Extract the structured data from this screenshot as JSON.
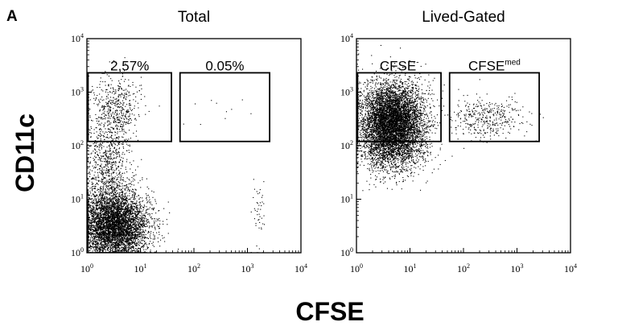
{
  "panel_label": "A",
  "y_axis_label": "CD11c",
  "x_axis_label": "CFSE",
  "chart_data": [
    {
      "type": "scatter",
      "title": "Total",
      "xscale": "log",
      "yscale": "log",
      "xlim": [
        1,
        10000
      ],
      "ylim": [
        1,
        10000
      ],
      "x_ticks": [
        "10",
        "10",
        "10",
        "10",
        "10"
      ],
      "x_tick_exponents": [
        "0",
        "1",
        "2",
        "3",
        "4"
      ],
      "y_ticks": [
        "10",
        "10",
        "10",
        "10",
        "10"
      ],
      "y_tick_exponents": [
        "0",
        "1",
        "2",
        "3",
        "4"
      ],
      "gates": [
        {
          "label": "2.57%",
          "x_range": [
            1.05,
            38
          ],
          "y_range": [
            120,
            2300
          ]
        },
        {
          "label": "0.05%",
          "x_range": [
            55,
            2600
          ],
          "y_range": [
            120,
            2300
          ]
        }
      ],
      "populations": [
        {
          "x_center": 3.2,
          "y_center": 3.2,
          "spread_x": 0.32,
          "spread_y": 0.32,
          "count": 5200
        },
        {
          "x_center": 2.4,
          "y_center": 40,
          "spread_x": 0.22,
          "spread_y": 0.55,
          "count": 900
        },
        {
          "x_center": 3.5,
          "y_center": 550,
          "spread_x": 0.22,
          "spread_y": 0.28,
          "count": 420
        },
        {
          "x_center": 1600,
          "y_center": 4,
          "spread_x": 0.06,
          "spread_y": 0.35,
          "count": 45
        },
        {
          "x_center": 400,
          "y_center": 500,
          "spread_x": 0.35,
          "spread_y": 0.2,
          "count": 10
        }
      ]
    },
    {
      "type": "scatter",
      "title": "Lived-Gated",
      "xscale": "log",
      "yscale": "log",
      "xlim": [
        1,
        10000
      ],
      "ylim": [
        1,
        10000
      ],
      "x_ticks": [
        "10",
        "10",
        "10",
        "10",
        "10"
      ],
      "x_tick_exponents": [
        "0",
        "1",
        "2",
        "3",
        "4"
      ],
      "y_ticks": [
        "10",
        "10",
        "10",
        "10",
        "10"
      ],
      "y_tick_exponents": [
        "0",
        "1",
        "2",
        "3",
        "4"
      ],
      "gates": [
        {
          "label": "CFSE",
          "label_superscript": "-",
          "x_range": [
            1.05,
            38
          ],
          "y_range": [
            120,
            2300
          ]
        },
        {
          "label": "CFSE",
          "label_superscript": "med",
          "x_range": [
            55,
            2600
          ],
          "y_range": [
            120,
            2300
          ]
        }
      ],
      "populations": [
        {
          "x_center": 4.5,
          "y_center": 250,
          "spread_x": 0.3,
          "spread_y": 0.38,
          "count": 7000
        },
        {
          "x_center": 250,
          "y_center": 330,
          "spread_x": 0.35,
          "spread_y": 0.2,
          "count": 380
        }
      ]
    }
  ]
}
